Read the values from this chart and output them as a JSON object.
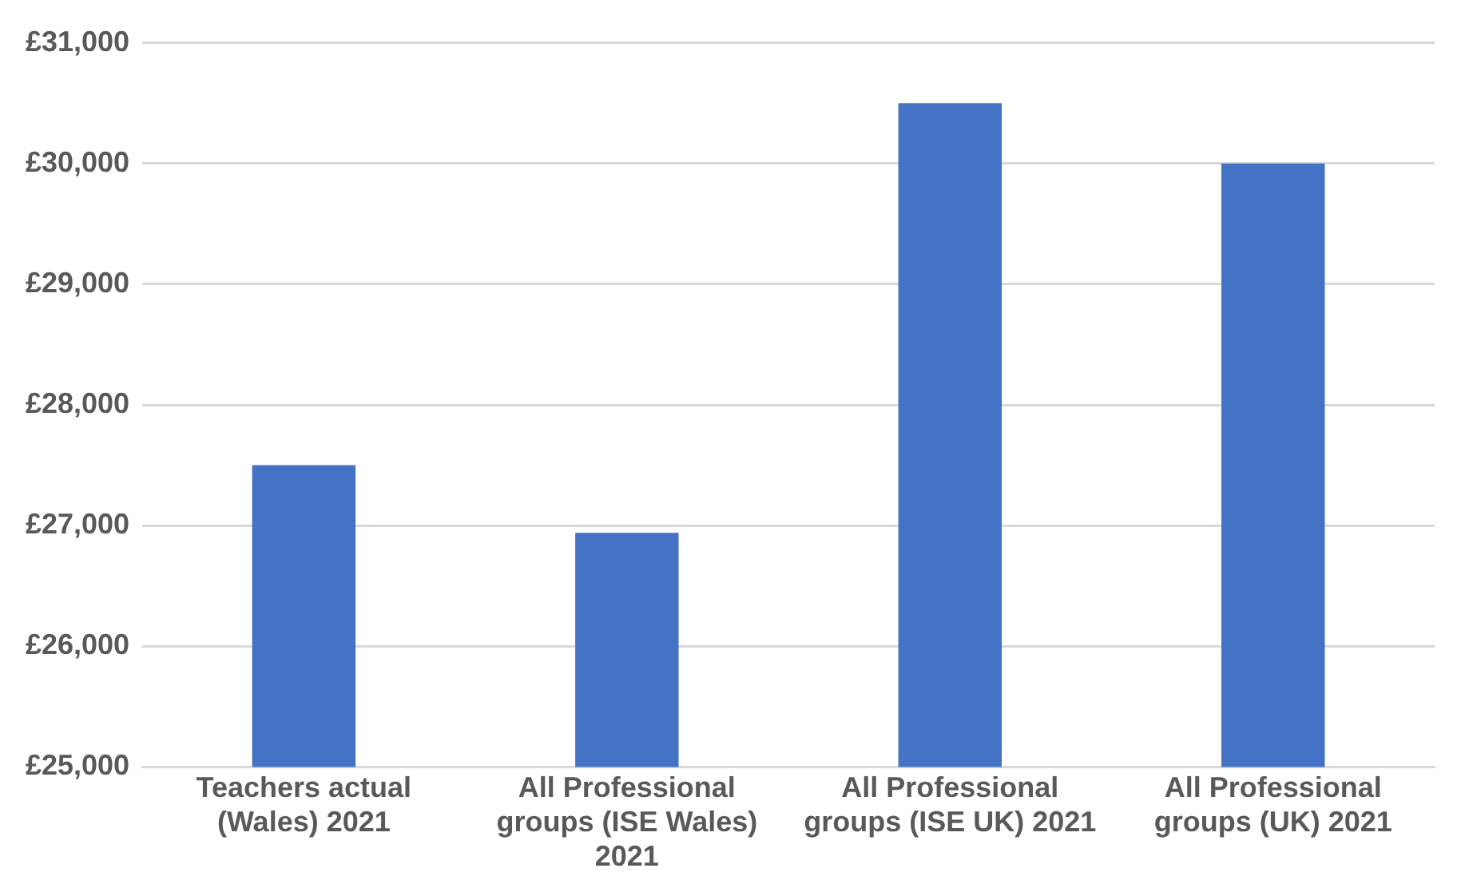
{
  "chart_data": {
    "type": "bar",
    "categories": [
      "Teachers actual (Wales) 2021",
      "All Professional groups (ISE Wales) 2021",
      "All Professional groups (ISE UK) 2021",
      "All Professional groups (UK) 2021"
    ],
    "values": [
      27500,
      26940,
      30500,
      30000
    ],
    "color": "#4472c4",
    "ylim": [
      25000,
      31000
    ],
    "yticks": [
      {
        "value": 25000,
        "label": "£25,000"
      },
      {
        "value": 26000,
        "label": "£26,000"
      },
      {
        "value": 27000,
        "label": "£27,000"
      },
      {
        "value": 28000,
        "label": "£28,000"
      },
      {
        "value": 29000,
        "label": "£29,000"
      },
      {
        "value": 30000,
        "label": "£30,000"
      },
      {
        "value": 31000,
        "label": "£31,000"
      }
    ],
    "grid": "y",
    "legend": false
  }
}
